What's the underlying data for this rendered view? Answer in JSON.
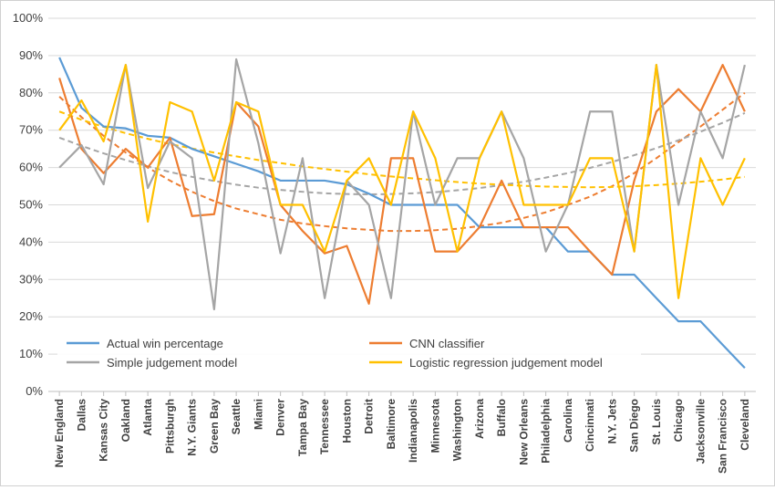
{
  "chart_data": {
    "type": "line",
    "title": "",
    "xlabel": "",
    "ylabel": "",
    "ylim": [
      0,
      100
    ],
    "y_ticks": [
      "0%",
      "10%",
      "20%",
      "30%",
      "40%",
      "50%",
      "60%",
      "70%",
      "80%",
      "90%",
      "100%"
    ],
    "grid": "horizontal",
    "legend_position": "bottom-inside",
    "categories": [
      "New England",
      "Dallas",
      "Kansas City",
      "Oakland",
      "Atlanta",
      "Pittsburgh",
      "N.Y. Giants",
      "Green Bay",
      "Seattle",
      "Miami",
      "Denver",
      "Tampa Bay",
      "Tennessee",
      "Houston",
      "Detroit",
      "Baltimore",
      "Indianapolis",
      "Minnesota",
      "Washington",
      "Arizona",
      "Buffalo",
      "New Orleans",
      "Philadelphia",
      "Carolina",
      "Cincinnati",
      "N.Y. Jets",
      "San Diego",
      "St. Louis",
      "Chicago",
      "Jacksonville",
      "San Francisco",
      "Cleveland"
    ],
    "series": [
      {
        "name": "Actual win percentage",
        "color": "#5b9bd5",
        "values": [
          89.5,
          76,
          71,
          70.5,
          68.5,
          68,
          65,
          63,
          61,
          59,
          56.5,
          56.5,
          56.5,
          55.5,
          53,
          50,
          50,
          50,
          50,
          44,
          44,
          44,
          44,
          37.5,
          37.5,
          31.3,
          31.3,
          25,
          18.8,
          18.8,
          12.5,
          6.3
        ]
      },
      {
        "name": "CNN classifier",
        "color": "#ed7d31",
        "values": [
          84,
          65,
          58.5,
          65,
          60,
          68,
          47,
          47.5,
          77.5,
          71,
          50,
          43,
          37,
          39,
          23.5,
          62.5,
          62.5,
          37.5,
          37.5,
          44,
          56.5,
          44,
          44,
          44,
          37.5,
          31.3,
          56.5,
          75,
          81,
          75,
          87.5,
          75
        ]
      },
      {
        "name": "Simple judgement model",
        "color": "#a5a5a5",
        "values": [
          60,
          66,
          55.5,
          87.5,
          54.5,
          67,
          62.5,
          22,
          89,
          66.5,
          37,
          62.5,
          25,
          56.5,
          50,
          25,
          75,
          50,
          62.5,
          62.5,
          75,
          62.5,
          37.5,
          50,
          75,
          75,
          37.5,
          87.5,
          50,
          75,
          62.5,
          87.5
        ]
      },
      {
        "name": "Logistic regression judgement model",
        "color": "#ffc000",
        "values": [
          70,
          78,
          67,
          87.5,
          45.5,
          77.5,
          75,
          56.5,
          77.5,
          75,
          50,
          50,
          37.5,
          56.5,
          62.5,
          50,
          75,
          62.5,
          37.5,
          62.5,
          75,
          50,
          50,
          50,
          62.5,
          62.5,
          37.5,
          87.5,
          25,
          62.5,
          50,
          62.5
        ]
      }
    ],
    "trendlines": [
      {
        "series": "Actual win percentage",
        "type": "polynomial",
        "order": 2,
        "color": "#5b9bd5",
        "values": []
      },
      {
        "series": "CNN classifier",
        "type": "polynomial",
        "order": 2,
        "color": "#ed7d31",
        "values": [
          79,
          73.5,
          68.5,
          64,
          60,
          56.5,
          53.5,
          51,
          49,
          47.5,
          46,
          45,
          44.3,
          43.7,
          43.3,
          43,
          43,
          43.2,
          43.6,
          44.3,
          45.2,
          46.5,
          48,
          50,
          52.2,
          55,
          58.5,
          62.5,
          66.8,
          71,
          75.5,
          80
        ]
      },
      {
        "series": "Simple judgement model",
        "type": "polynomial",
        "order": 2,
        "color": "#a5a5a5",
        "values": [
          68,
          65.8,
          63.8,
          62,
          60.3,
          58.8,
          57.5,
          56.4,
          55.4,
          54.6,
          54,
          53.5,
          53.1,
          52.9,
          52.8,
          52.9,
          53.1,
          53.4,
          53.9,
          54.5,
          55.3,
          56.2,
          57.3,
          58.5,
          59.9,
          61.5,
          63.3,
          65.2,
          67.3,
          69.6,
          72,
          74.6
        ]
      },
      {
        "series": "Logistic regression judgement model",
        "type": "polynomial",
        "order": 2,
        "color": "#ffc000",
        "values": [
          75,
          72.8,
          70.9,
          69.2,
          67.7,
          66.3,
          65.1,
          64,
          63,
          62,
          61.2,
          60.3,
          59.6,
          58.9,
          58.2,
          57.6,
          57.1,
          56.6,
          56.1,
          55.7,
          55.4,
          55.1,
          54.9,
          54.8,
          54.7,
          54.8,
          55,
          55.3,
          55.7,
          56.2,
          56.8,
          57.5
        ]
      }
    ]
  }
}
